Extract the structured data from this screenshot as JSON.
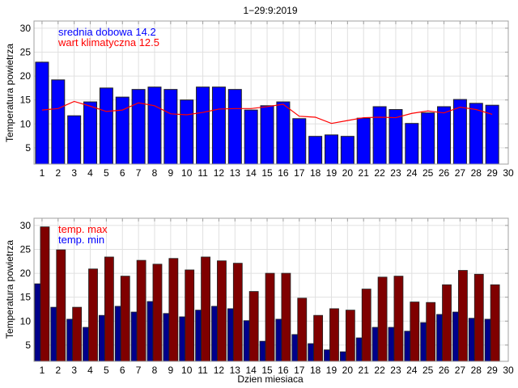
{
  "colors": {
    "mean_bar": "#0000ff",
    "climate_line": "#ff0000",
    "max_bar": "#7f0000",
    "min_bar": "#00008b",
    "grid": "#e0e0e0",
    "axis": "#a0a0a0",
    "bar_edge": "#222222"
  },
  "chart_data": [
    {
      "type": "bar",
      "title": "1−29:9:2019",
      "xlabel": "",
      "ylabel": "Temperatura powietrza",
      "xlim": [
        0.5,
        30
      ],
      "ylim": [
        1.6,
        31.5
      ],
      "grid": true,
      "x_ticks": [
        "1",
        "2",
        "3",
        "4",
        "5",
        "6",
        "7",
        "8",
        "9",
        "10",
        "11",
        "12",
        "13",
        "14",
        "15",
        "16",
        "17",
        "18",
        "19",
        "20",
        "21",
        "22",
        "23",
        "24",
        "25",
        "26",
        "27",
        "28",
        "29",
        "30"
      ],
      "y_ticks": [
        "5",
        "10",
        "15",
        "20",
        "25",
        "30"
      ],
      "categories": [
        1,
        2,
        3,
        4,
        5,
        6,
        7,
        8,
        9,
        10,
        11,
        12,
        13,
        14,
        15,
        16,
        17,
        18,
        19,
        20,
        21,
        22,
        23,
        24,
        25,
        26,
        27,
        28,
        29
      ],
      "legend_placement": "top-left",
      "annotations": [
        {
          "text": "srednia dobowa 14.2",
          "color_key": "mean_bar"
        },
        {
          "text": "wart klimatyczna 12.5",
          "color_key": "climate_line"
        }
      ],
      "series": [
        {
          "name": "srednia dobowa",
          "kind": "bar",
          "values": [
            22.9,
            19.2,
            11.7,
            14.6,
            17.5,
            15.6,
            17.2,
            17.7,
            17.2,
            15.0,
            17.7,
            17.7,
            17.2,
            12.9,
            13.8,
            14.6,
            11.1,
            7.4,
            7.7,
            7.4,
            11.2,
            13.6,
            13.0,
            10.1,
            12.3,
            13.6,
            15.1,
            14.3,
            13.9
          ]
        },
        {
          "name": "wart klimatyczna",
          "kind": "line",
          "values": [
            12.9,
            13.2,
            14.7,
            13.7,
            12.6,
            12.9,
            14.4,
            13.8,
            12.1,
            11.9,
            12.4,
            13.1,
            13.2,
            13.2,
            13.6,
            14.1,
            11.6,
            11.4,
            10.1,
            10.7,
            11.3,
            11.4,
            11.3,
            12.2,
            12.7,
            12.3,
            13.5,
            13.0,
            12.0
          ]
        }
      ]
    },
    {
      "type": "bar",
      "title": "",
      "xlabel": "Dzien miesiaca",
      "ylabel": "Temperatura powietrza",
      "xlim": [
        0.5,
        30
      ],
      "ylim": [
        1.6,
        31.5
      ],
      "grid": true,
      "x_ticks": [
        "1",
        "2",
        "3",
        "4",
        "5",
        "6",
        "7",
        "8",
        "9",
        "10",
        "11",
        "12",
        "13",
        "14",
        "15",
        "16",
        "17",
        "18",
        "19",
        "20",
        "21",
        "22",
        "23",
        "24",
        "25",
        "26",
        "27",
        "28",
        "29",
        "30"
      ],
      "y_ticks": [
        "5",
        "10",
        "15",
        "20",
        "25",
        "30"
      ],
      "categories": [
        1,
        2,
        3,
        4,
        5,
        6,
        7,
        8,
        9,
        10,
        11,
        12,
        13,
        14,
        15,
        16,
        17,
        18,
        19,
        20,
        21,
        22,
        23,
        24,
        25,
        26,
        27,
        28,
        29
      ],
      "legend_placement": "top-left",
      "legend": [
        {
          "text": "temp. max",
          "color_key": "climate_line"
        },
        {
          "text": "temp. min",
          "color_key": "mean_bar"
        }
      ],
      "series": [
        {
          "name": "temp. min",
          "kind": "bar",
          "values": [
            17.8,
            12.9,
            10.4,
            8.7,
            11.2,
            13.1,
            11.9,
            14.1,
            11.6,
            10.9,
            12.3,
            13.1,
            12.6,
            10.1,
            5.8,
            10.4,
            7.2,
            5.3,
            4.0,
            3.6,
            6.5,
            8.7,
            8.7,
            7.9,
            9.7,
            11.4,
            11.9,
            10.6,
            10.4
          ]
        },
        {
          "name": "temp. max",
          "kind": "bar",
          "values": [
            29.7,
            24.9,
            12.9,
            20.9,
            23.4,
            19.4,
            22.7,
            21.9,
            23.1,
            20.7,
            23.4,
            22.6,
            22.1,
            16.2,
            20.0,
            20.0,
            14.8,
            11.2,
            12.6,
            12.3,
            16.7,
            19.2,
            19.4,
            14.0,
            13.9,
            17.6,
            20.6,
            19.8,
            17.6
          ]
        }
      ]
    }
  ]
}
